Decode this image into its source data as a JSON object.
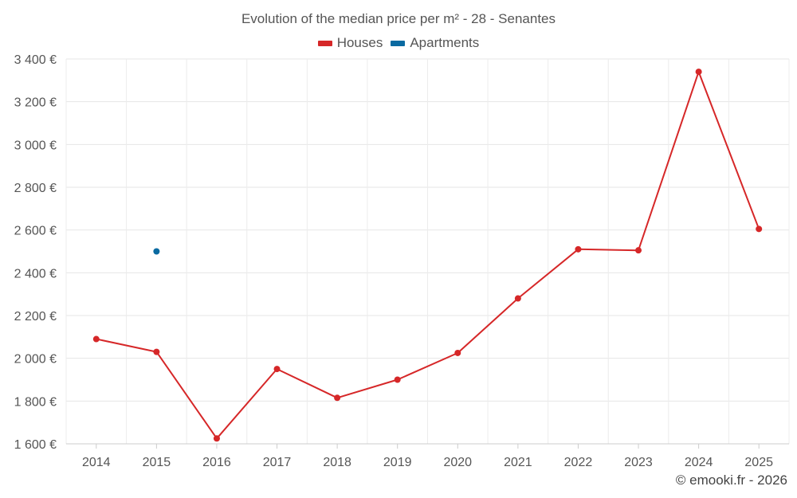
{
  "chart_data": {
    "type": "line",
    "title": "Evolution of the median price per m² - 28 - Senantes",
    "xlabel": "",
    "ylabel": "",
    "categories": [
      "2014",
      "2015",
      "2016",
      "2017",
      "2018",
      "2019",
      "2020",
      "2021",
      "2022",
      "2023",
      "2024",
      "2025"
    ],
    "ylim": [
      1600,
      3400
    ],
    "yticks": [
      1600,
      1800,
      2000,
      2200,
      2400,
      2600,
      2800,
      3000,
      3200,
      3400
    ],
    "ytick_labels": [
      "1 600 €",
      "1 800 €",
      "2 000 €",
      "2 200 €",
      "2 400 €",
      "2 600 €",
      "2 800 €",
      "3 000 €",
      "3 200 €",
      "3 400 €"
    ],
    "grid": true,
    "legend_position": "top-center",
    "series": [
      {
        "name": "Houses",
        "color": "#d62728",
        "values": [
          2090,
          2030,
          1625,
          1950,
          1815,
          1900,
          2025,
          2280,
          2510,
          2505,
          3340,
          2605
        ]
      },
      {
        "name": "Apartments",
        "color": "#0a6aa1",
        "values": [
          null,
          2500,
          null,
          null,
          null,
          null,
          null,
          null,
          null,
          null,
          null,
          null
        ]
      }
    ]
  },
  "credit": "© emooki.fr - 2026"
}
